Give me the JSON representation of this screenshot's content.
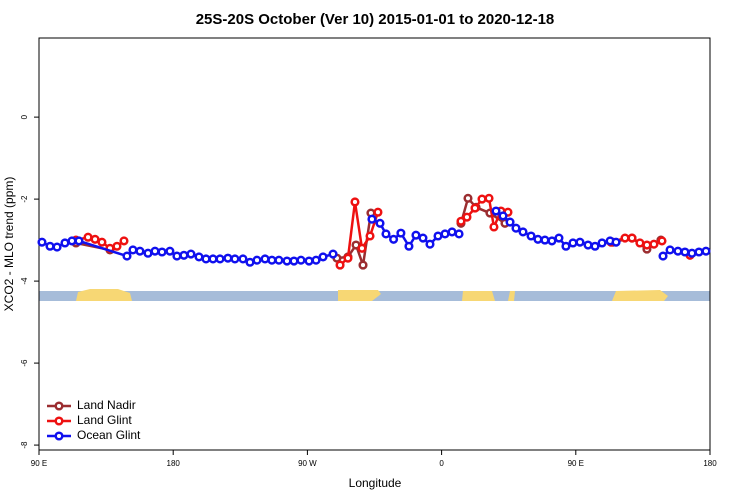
{
  "chart_data": {
    "type": "line",
    "title": "25S-20S October (Ver 10)   2015-01-01 to 2020-12-18",
    "x_label": "Longitude",
    "y_label": "XCO2 - MLO trend (ppm)",
    "xlim": [
      90,
      540
    ],
    "xticks": [
      {
        "value": 90,
        "label": "90 E"
      },
      180,
      {
        "value": 270,
        "label": "90 W"
      },
      {
        "value": 360,
        "label": "0"
      },
      {
        "value": 450,
        "label": "90 E"
      },
      {
        "value": 540,
        "label": "180"
      }
    ],
    "ylim": [
      -8.12,
      1.93
    ],
    "yticks": [
      0,
      -2,
      -4,
      -6,
      -8
    ],
    "legend": "bottom-left",
    "series": [
      {
        "name": "Land Nadir",
        "color": "#9b2d30",
        "x": [
          114.8,
          137.6,
          null,
          289.8,
          297.2,
          302.6,
          307.3,
          312.6,
          null,
          373.0,
          377.7,
          383.1,
          392.4,
          402.5,
          null,
          474.9,
          487.7,
          497.7,
          507.1
        ],
        "values": [
          -3.07,
          -3.24,
          null,
          -3.44,
          -3.41,
          -3.12,
          -3.61,
          -2.34,
          null,
          -2.59,
          -1.98,
          -2.2,
          -2.34,
          -2.59,
          null,
          -3.05,
          -2.95,
          -3.22,
          -3.0
        ]
      },
      {
        "name": "Land Glint",
        "color": "#ee1111",
        "x": [
          114.8,
          122.9,
          127.6,
          132.2,
          137.6,
          142.3,
          147.0,
          null,
          291.9,
          297.2,
          301.9,
          306.6,
          312.0,
          317.3,
          null,
          373.0,
          377.0,
          382.4,
          387.1,
          391.8,
          395.1,
          399.8,
          404.5,
          null,
          473.6,
          483.0,
          487.7,
          493.0,
          497.7,
          502.4,
          507.8,
          null,
          526.6
        ],
        "values": [
          -3.0,
          -2.93,
          -2.98,
          -3.05,
          -3.2,
          -3.15,
          -3.02,
          null,
          -3.61,
          -3.44,
          -2.07,
          -3.2,
          -2.9,
          -2.32,
          null,
          -2.54,
          -2.44,
          -2.22,
          -2.0,
          -1.98,
          -2.68,
          -2.29,
          -2.32,
          null,
          -3.05,
          -2.95,
          -2.95,
          -3.07,
          -3.12,
          -3.1,
          -3.02,
          null,
          -3.37
        ]
      },
      {
        "name": "Ocean Glint",
        "color": "#1010ee",
        "x": [
          92.0,
          97.4,
          102.1,
          107.4,
          112.1,
          116.8,
          149.0,
          153.0,
          157.7,
          163.1,
          167.8,
          172.5,
          177.8,
          182.5,
          187.2,
          191.9,
          197.3,
          202.0,
          206.7,
          211.4,
          216.7,
          221.4,
          226.8,
          231.5,
          236.2,
          241.6,
          246.2,
          250.9,
          256.3,
          261.0,
          265.7,
          271.1,
          275.8,
          280.5,
          287.2,
          null,
          313.3,
          318.7,
          322.7,
          327.8,
          332.7,
          338.1,
          342.8,
          347.5,
          352.2,
          357.6,
          362.3,
          367.0,
          371.7,
          null,
          396.5,
          401.2,
          405.9,
          409.9,
          414.6,
          420.0,
          424.6,
          429.3,
          434.0,
          438.7,
          443.4,
          448.1,
          452.8,
          458.2,
          462.9,
          467.6,
          473.0,
          477.0,
          null,
          508.5,
          513.2,
          518.5,
          523.2,
          527.9,
          532.6,
          537.3
        ],
        "values": [
          -3.05,
          -3.15,
          -3.17,
          -3.07,
          -3.02,
          -3.02,
          -3.39,
          -3.24,
          -3.27,
          -3.32,
          -3.27,
          -3.29,
          -3.27,
          -3.39,
          -3.37,
          -3.34,
          -3.41,
          -3.46,
          -3.46,
          -3.46,
          -3.44,
          -3.46,
          -3.46,
          -3.54,
          -3.49,
          -3.46,
          -3.49,
          -3.49,
          -3.51,
          -3.51,
          -3.49,
          -3.51,
          -3.49,
          -3.41,
          -3.34,
          null,
          -2.49,
          -2.59,
          -2.85,
          -2.98,
          -2.83,
          -3.15,
          -2.88,
          -2.95,
          -3.1,
          -2.9,
          -2.85,
          -2.8,
          -2.85,
          null,
          -2.29,
          -2.41,
          -2.56,
          -2.71,
          -2.8,
          -2.9,
          -2.98,
          -3.0,
          -3.02,
          -2.95,
          -3.15,
          -3.07,
          -3.05,
          -3.12,
          -3.15,
          -3.07,
          -3.02,
          -3.05,
          null,
          -3.39,
          -3.24,
          -3.27,
          -3.29,
          -3.32,
          -3.29,
          -3.27
        ]
      }
    ]
  }
}
